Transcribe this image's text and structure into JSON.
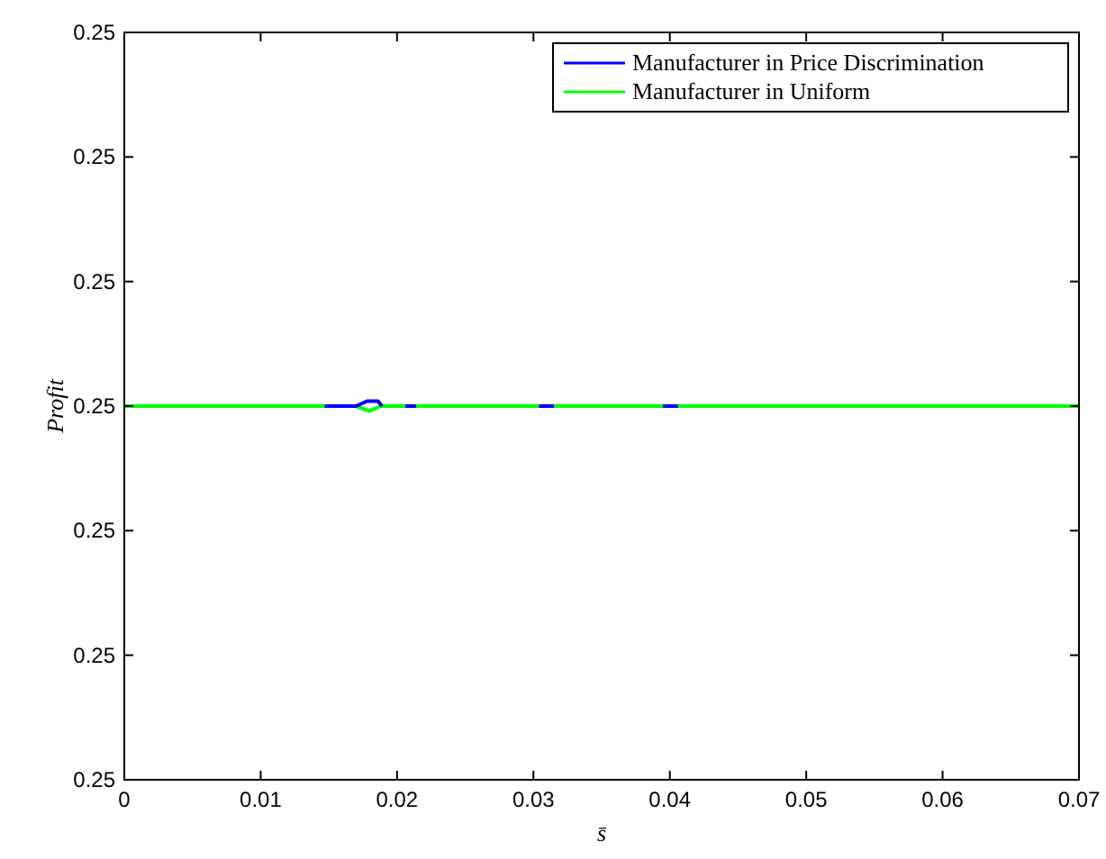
{
  "chart_data": {
    "type": "line",
    "xlabel": "s̄",
    "ylabel": "Profit",
    "xlim": [
      0,
      0.07
    ],
    "xticks": [
      0,
      0.01,
      0.02,
      0.03,
      0.04,
      0.05,
      0.06,
      0.07
    ],
    "ylim": [
      0.24999997,
      0.25000003
    ],
    "yticks": [
      {
        "value": 0.24999997,
        "label": "0.25"
      },
      {
        "value": 0.24999998,
        "label": "0.25"
      },
      {
        "value": 0.24999999,
        "label": "0.25"
      },
      {
        "value": 0.25,
        "label": "0.25"
      },
      {
        "value": 0.25000001,
        "label": "0.25"
      },
      {
        "value": 0.25000002,
        "label": "0.25"
      },
      {
        "value": 0.25000003,
        "label": "0.25"
      }
    ],
    "series": [
      {
        "name": "Manufacturer in Price Discrimination",
        "color": "#0000ff",
        "x": [
          0.0147,
          0.017,
          0.0178,
          0.0186,
          0.0189,
          null,
          0.0206,
          0.0214,
          null,
          0.0304,
          0.0315,
          null,
          0.0395,
          0.0406
        ],
        "values": [
          0.25,
          0.25,
          0.2500000004,
          0.2500000004,
          0.25,
          null,
          0.25,
          0.25,
          null,
          0.25,
          0.25,
          null,
          0.25,
          0.25
        ]
      },
      {
        "name": "Manufacturer in Uniform",
        "color": "#00ff00",
        "x": [
          0,
          0.017,
          0.018,
          0.0188,
          0.07
        ],
        "values": [
          0.25,
          0.25,
          0.2499999996,
          0.25,
          0.25
        ]
      }
    ],
    "legend": "top right",
    "grid": false,
    "marker": "none",
    "line_style": "solid"
  }
}
